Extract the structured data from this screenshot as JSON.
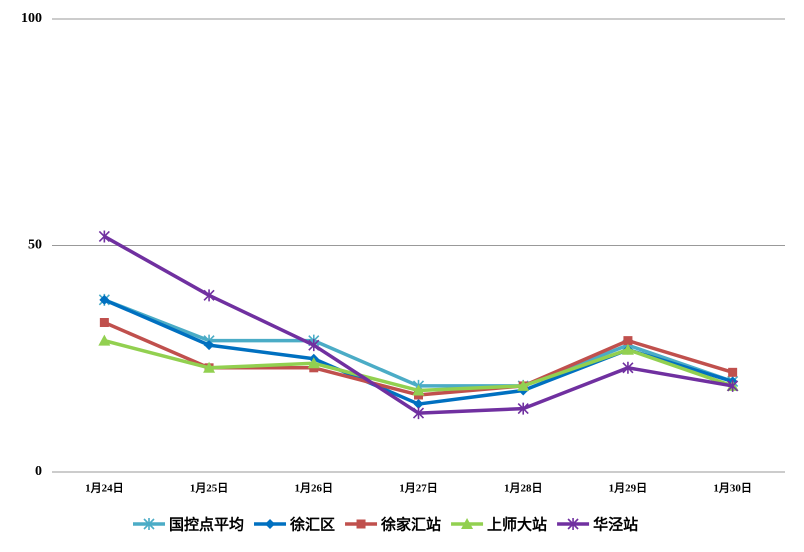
{
  "chart_data": {
    "type": "line",
    "categories": [
      "1月24日",
      "1月25日",
      "1月26日",
      "1月27日",
      "1月28日",
      "1月29日",
      "1月30日"
    ],
    "series": [
      {
        "name": "国控点平均",
        "color": "#4BACC6",
        "marker": "star",
        "values": [
          38,
          29,
          29,
          19,
          19,
          28,
          20
        ]
      },
      {
        "name": "徐汇区",
        "color": "#0070C0",
        "marker": "diamond",
        "values": [
          38,
          28,
          25,
          15,
          18,
          27,
          20
        ]
      },
      {
        "name": "徐家汇站",
        "color": "#C0504D",
        "marker": "square",
        "values": [
          33,
          23,
          23,
          17,
          19,
          29,
          22
        ]
      },
      {
        "name": "上师大站",
        "color": "#92D050",
        "marker": "triangle",
        "values": [
          29,
          23,
          24,
          18,
          19,
          27,
          19
        ]
      },
      {
        "name": "华泾站",
        "color": "#7030A0",
        "marker": "star",
        "values": [
          52,
          39,
          28,
          13,
          14,
          23,
          19
        ]
      }
    ],
    "ylim": [
      0,
      100
    ],
    "yticks": [
      0,
      50,
      100
    ],
    "grid": true,
    "legend": "bottom"
  }
}
